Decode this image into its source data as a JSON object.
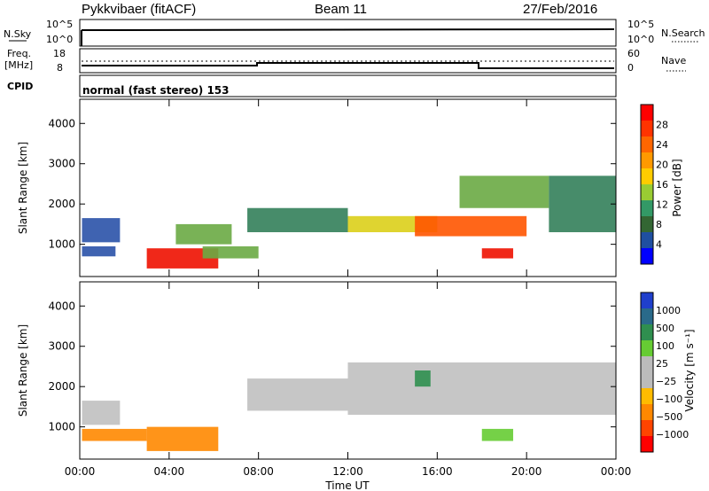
{
  "header": {
    "title": "Pykkvibaer (fitACF)",
    "beam": "Beam 11",
    "date": "27/Feb/2016"
  },
  "sky_panel": {
    "left_label": "N.Sky",
    "left_ticks": [
      "10^5",
      "10^0"
    ],
    "right_label": "N.Search",
    "right_ticks": [
      "10^5",
      "10^0"
    ]
  },
  "freq_panel": {
    "left_label_1": "Freq.",
    "left_label_2": "[MHz]",
    "left_ticks": [
      "18",
      "8"
    ],
    "right_label": "Nave",
    "right_ticks": [
      "60",
      "0"
    ]
  },
  "cpid": {
    "label": "CPID",
    "value": "normal (fast stereo) 153"
  },
  "power_colorbar": {
    "label": "Power [dB]",
    "ticks": [
      "28",
      "24",
      "20",
      "16",
      "12",
      "8",
      "4"
    ],
    "colors": [
      "#ff0000",
      "#ff3300",
      "#ff6600",
      "#ff9900",
      "#ffcc00",
      "#99cc33",
      "#339966",
      "#336633",
      "#1f4fa0",
      "#0000ff"
    ]
  },
  "velocity_colorbar": {
    "label": "Velocity [m s⁻¹]",
    "ticks": [
      "1000",
      "500",
      "100",
      "25",
      "−25",
      "−100",
      "−500",
      "−1000"
    ],
    "colors": [
      "#1f3fcc",
      "#2a6a8a",
      "#2f8f4f",
      "#66cc33",
      "#bbbbbb",
      "#bbbbbb",
      "#ffbb00",
      "#ff8800",
      "#ff4400",
      "#ff0000"
    ]
  },
  "chart_data": [
    {
      "type": "heatmap",
      "title": "",
      "xlabel": "",
      "ylabel": "Slant Range [km]",
      "x_ticks": [
        "00:00",
        "04:00",
        "08:00",
        "12:00",
        "16:00",
        "20:00",
        "00:00"
      ],
      "y_ticks": [
        "1000",
        "2000",
        "3000",
        "4000"
      ],
      "ylim": [
        200,
        4600
      ],
      "colorbar": "Power [dB]",
      "regions": [
        {
          "t0": 0.1,
          "t1": 1.8,
          "r0": 1050,
          "r1": 1650,
          "value": 8
        },
        {
          "t0": 0.1,
          "t1": 1.6,
          "r0": 700,
          "r1": 950,
          "value": 8
        },
        {
          "t0": 3.0,
          "t1": 6.2,
          "r0": 400,
          "r1": 900,
          "value": 26
        },
        {
          "t0": 4.3,
          "t1": 6.8,
          "r0": 1000,
          "r1": 1500,
          "value": 14
        },
        {
          "t0": 5.5,
          "t1": 8.0,
          "r0": 650,
          "r1": 950,
          "value": 12
        },
        {
          "t0": 7.5,
          "t1": 12.0,
          "r0": 1300,
          "r1": 1900,
          "value": 10
        },
        {
          "t0": 12.0,
          "t1": 16.0,
          "r0": 1300,
          "r1": 1700,
          "value": 16
        },
        {
          "t0": 15.0,
          "t1": 20.0,
          "r0": 1200,
          "r1": 1700,
          "value": 24
        },
        {
          "t0": 17.0,
          "t1": 21.0,
          "r0": 1900,
          "r1": 2700,
          "value": 14
        },
        {
          "t0": 18.0,
          "t1": 19.4,
          "r0": 650,
          "r1": 900,
          "value": 26
        },
        {
          "t0": 21.0,
          "t1": 24.0,
          "r0": 1300,
          "r1": 2700,
          "value": 10
        }
      ]
    },
    {
      "type": "heatmap",
      "title": "",
      "xlabel": "Time UT",
      "ylabel": "Slant Range [km]",
      "x_ticks": [
        "00:00",
        "04:00",
        "08:00",
        "12:00",
        "16:00",
        "20:00",
        "00:00"
      ],
      "y_ticks": [
        "1000",
        "2000",
        "3000",
        "4000"
      ],
      "ylim": [
        200,
        4600
      ],
      "colorbar": "Velocity [m s⁻¹]",
      "regions": [
        {
          "t0": 0.1,
          "t1": 1.8,
          "r0": 1050,
          "r1": 1650,
          "value": 0
        },
        {
          "t0": 0.1,
          "t1": 3.0,
          "r0": 650,
          "r1": 950,
          "value": -120
        },
        {
          "t0": 3.0,
          "t1": 6.2,
          "r0": 400,
          "r1": 1000,
          "value": -300
        },
        {
          "t0": 7.5,
          "t1": 12.0,
          "r0": 1400,
          "r1": 2200,
          "value": 0
        },
        {
          "t0": 12.0,
          "t1": 24.0,
          "r0": 1300,
          "r1": 2600,
          "value": 0
        },
        {
          "t0": 18.0,
          "t1": 19.4,
          "r0": 650,
          "r1": 950,
          "value": 80
        },
        {
          "t0": 15.0,
          "t1": 15.7,
          "r0": 2000,
          "r1": 2400,
          "value": 300
        }
      ]
    }
  ]
}
